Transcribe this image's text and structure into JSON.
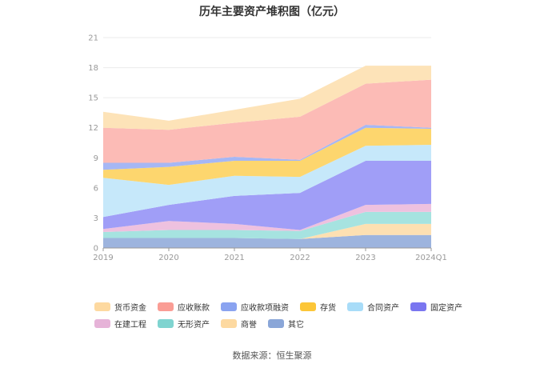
{
  "chart_data": {
    "type": "area",
    "stacked": true,
    "title": "历年主要资产堆积图（亿元）",
    "categories": [
      "2019",
      "2020",
      "2021",
      "2022",
      "2023",
      "2024Q1"
    ],
    "ylim": [
      0,
      21
    ],
    "yticks": [
      0,
      3,
      6,
      9,
      12,
      15,
      18,
      21
    ],
    "grid": true,
    "legend_position": "bottom",
    "series": [
      {
        "name": "其它",
        "color": "#9db4de",
        "values": [
          1.0,
          1.0,
          1.0,
          0.9,
          1.3,
          1.3
        ]
      },
      {
        "name": "商誉",
        "color": "#fde0b2",
        "values": [
          0.0,
          0.0,
          0.0,
          0.0,
          1.1,
          1.1
        ]
      },
      {
        "name": "无形资产",
        "color": "#a6e3e0",
        "values": [
          0.6,
          0.8,
          0.8,
          0.8,
          1.2,
          1.2
        ]
      },
      {
        "name": "在建工程",
        "color": "#eec1df",
        "values": [
          0.3,
          0.9,
          0.6,
          0.1,
          0.7,
          0.8
        ]
      },
      {
        "name": "固定资产",
        "color": "#a09ef7",
        "values": [
          1.2,
          1.6,
          2.8,
          3.7,
          4.4,
          4.3
        ]
      },
      {
        "name": "合同资产",
        "color": "#c6e8fa",
        "values": [
          3.9,
          2.0,
          2.0,
          1.6,
          1.5,
          1.6
        ]
      },
      {
        "name": "存货",
        "color": "#fdd66e",
        "values": [
          0.8,
          1.8,
          1.5,
          1.6,
          1.8,
          1.6
        ]
      },
      {
        "name": "应收款项融资",
        "color": "#a6b7f4",
        "values": [
          0.7,
          0.4,
          0.4,
          0.1,
          0.3,
          0.1
        ]
      },
      {
        "name": "应收账款",
        "color": "#fcbbb6",
        "values": [
          3.5,
          3.3,
          3.4,
          4.3,
          4.1,
          4.8
        ]
      },
      {
        "name": "货币资金",
        "color": "#fde3b8",
        "values": [
          1.6,
          0.9,
          1.3,
          1.8,
          1.8,
          1.4
        ]
      }
    ]
  },
  "legend": {
    "row1": [
      {
        "label": "货币资金",
        "color": "#fdd9a0"
      },
      {
        "label": "应收账款",
        "color": "#fa9d95"
      },
      {
        "label": "应收款项融资",
        "color": "#8aa3f0"
      },
      {
        "label": "存货",
        "color": "#fcc638"
      },
      {
        "label": "合同资产",
        "color": "#a8dcf8"
      },
      {
        "label": "固定资产",
        "color": "#7a76f0"
      }
    ],
    "row2": [
      {
        "label": "在建工程",
        "color": "#e6b3d8"
      },
      {
        "label": "无形资产",
        "color": "#7fd4d0"
      },
      {
        "label": "商誉",
        "color": "#fdd9a0"
      },
      {
        "label": "其它",
        "color": "#8aa6d8"
      }
    ]
  },
  "source": "数据来源：恒生聚源"
}
